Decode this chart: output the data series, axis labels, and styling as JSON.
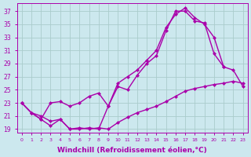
{
  "background_color": "#cce8ee",
  "grid_color": "#aacccc",
  "line_color": "#aa00aa",
  "marker": "D",
  "markersize": 2.5,
  "linewidth": 1.0,
  "xlabel": "Windchill (Refroidissement éolien,°C)",
  "xlabel_fontsize": 6.5,
  "ylabel_ticks": [
    19,
    21,
    23,
    25,
    27,
    29,
    31,
    33,
    35,
    37
  ],
  "xlim": [
    -0.5,
    23.5
  ],
  "ylim": [
    18.5,
    38.2
  ],
  "curveA_x": [
    0,
    1,
    2,
    3,
    4,
    5,
    6,
    7,
    8,
    9,
    10,
    11,
    12,
    13,
    14,
    15,
    16,
    17,
    18,
    19,
    20,
    21,
    22,
    23
  ],
  "curveA_y": [
    23.0,
    21.5,
    20.5,
    19.5,
    20.5,
    19.0,
    19.0,
    19.2,
    19.0,
    22.5,
    25.5,
    25.0,
    27.2,
    29.0,
    30.2,
    34.0,
    37.0,
    37.0,
    35.5,
    35.2,
    30.5,
    28.5,
    28.0,
    25.5
  ],
  "curveB_x": [
    0,
    1,
    2,
    3,
    4,
    5,
    6,
    7,
    8,
    9,
    10,
    11,
    12,
    13,
    14,
    15,
    16,
    17,
    18,
    19,
    20,
    21
  ],
  "curveB_y": [
    23.0,
    21.5,
    20.5,
    23.0,
    23.2,
    22.5,
    23.0,
    24.0,
    24.5,
    22.5,
    26.0,
    27.0,
    28.0,
    29.5,
    31.0,
    34.5,
    36.5,
    37.5,
    36.0,
    35.0,
    33.0,
    28.5
  ],
  "curveC_x": [
    0,
    1,
    2,
    3,
    4,
    5,
    6,
    7,
    8,
    9,
    10,
    11,
    12,
    13,
    14,
    15,
    16,
    17,
    18,
    19,
    20,
    21,
    22,
    23
  ],
  "curveC_y": [
    23.0,
    21.5,
    21.0,
    20.2,
    20.5,
    19.0,
    19.2,
    19.0,
    19.2,
    19.0,
    20.0,
    20.8,
    21.5,
    22.0,
    22.5,
    23.2,
    24.0,
    24.8,
    25.2,
    25.5,
    25.8,
    26.0,
    26.3,
    26.0
  ]
}
